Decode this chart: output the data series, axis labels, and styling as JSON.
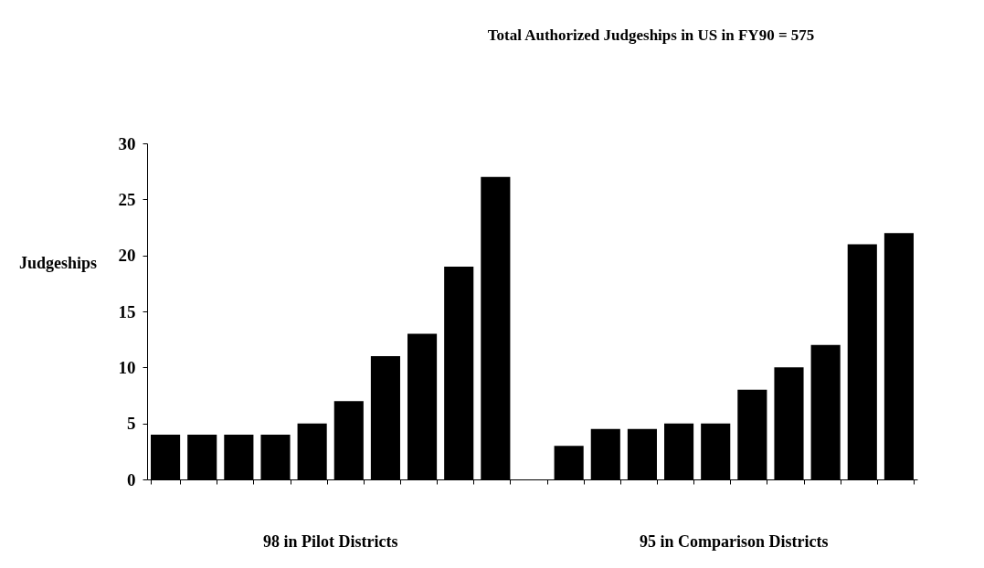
{
  "chart_data": {
    "type": "bar",
    "title": "Total Authorized Judgeships in US in FY90 = 575",
    "ylabel": "Judgeships",
    "categories": [
      null,
      null,
      null,
      null,
      null,
      null,
      null,
      null,
      null,
      null,
      null,
      null,
      null,
      null,
      null,
      null,
      null,
      null,
      null,
      null,
      null
    ],
    "values": [
      4,
      4,
      4,
      4,
      5,
      7,
      11,
      13,
      19,
      27,
      null,
      3,
      4.5,
      4.5,
      5,
      5,
      8,
      10,
      12,
      21,
      22
    ],
    "color": "#000000",
    "ylim": [
      0,
      30
    ],
    "yticks": [
      0,
      5,
      10,
      15,
      20,
      25,
      30
    ],
    "grid": false,
    "tick_labels": "y",
    "annotations": [
      "98 in Pilot Districts",
      "95 in Comparison Districts"
    ]
  }
}
